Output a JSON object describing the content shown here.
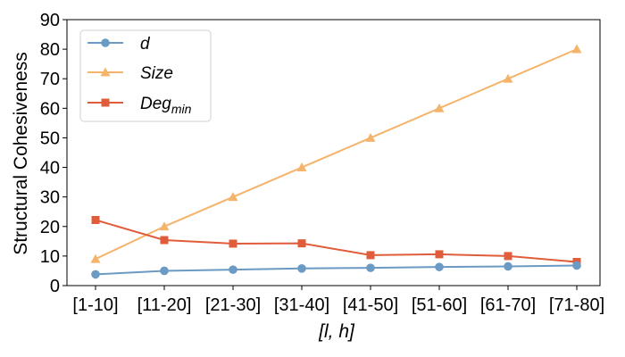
{
  "chart_data": {
    "type": "line",
    "categories": [
      "[1-10]",
      "[11-20]",
      "[21-30]",
      "[31-40]",
      "[41-50]",
      "[51-60]",
      "[61-70]",
      "[71-80]"
    ],
    "ylabel": "Structural Cohesiveness",
    "xlabel": "[l, h]",
    "ylim": [
      0,
      90
    ],
    "yticks": [
      0,
      10,
      20,
      30,
      40,
      50,
      60,
      70,
      80,
      90
    ],
    "legend_position": "top-left",
    "grid": false,
    "series": [
      {
        "name": "d",
        "color": "#6b9ac4",
        "marker": "circle",
        "values": [
          3.8,
          5.0,
          5.4,
          5.8,
          6.0,
          6.3,
          6.5,
          6.8
        ]
      },
      {
        "name": "Size",
        "color": "#f4b46c",
        "marker": "triangle",
        "values": [
          9,
          20,
          30,
          40,
          50,
          60,
          70,
          80
        ]
      },
      {
        "name": "Deg",
        "name_subscript": "min",
        "color": "#e05c3a",
        "marker": "square",
        "values": [
          22.2,
          15.4,
          14.2,
          14.3,
          10.3,
          10.6,
          10.0,
          8.0
        ]
      }
    ]
  }
}
